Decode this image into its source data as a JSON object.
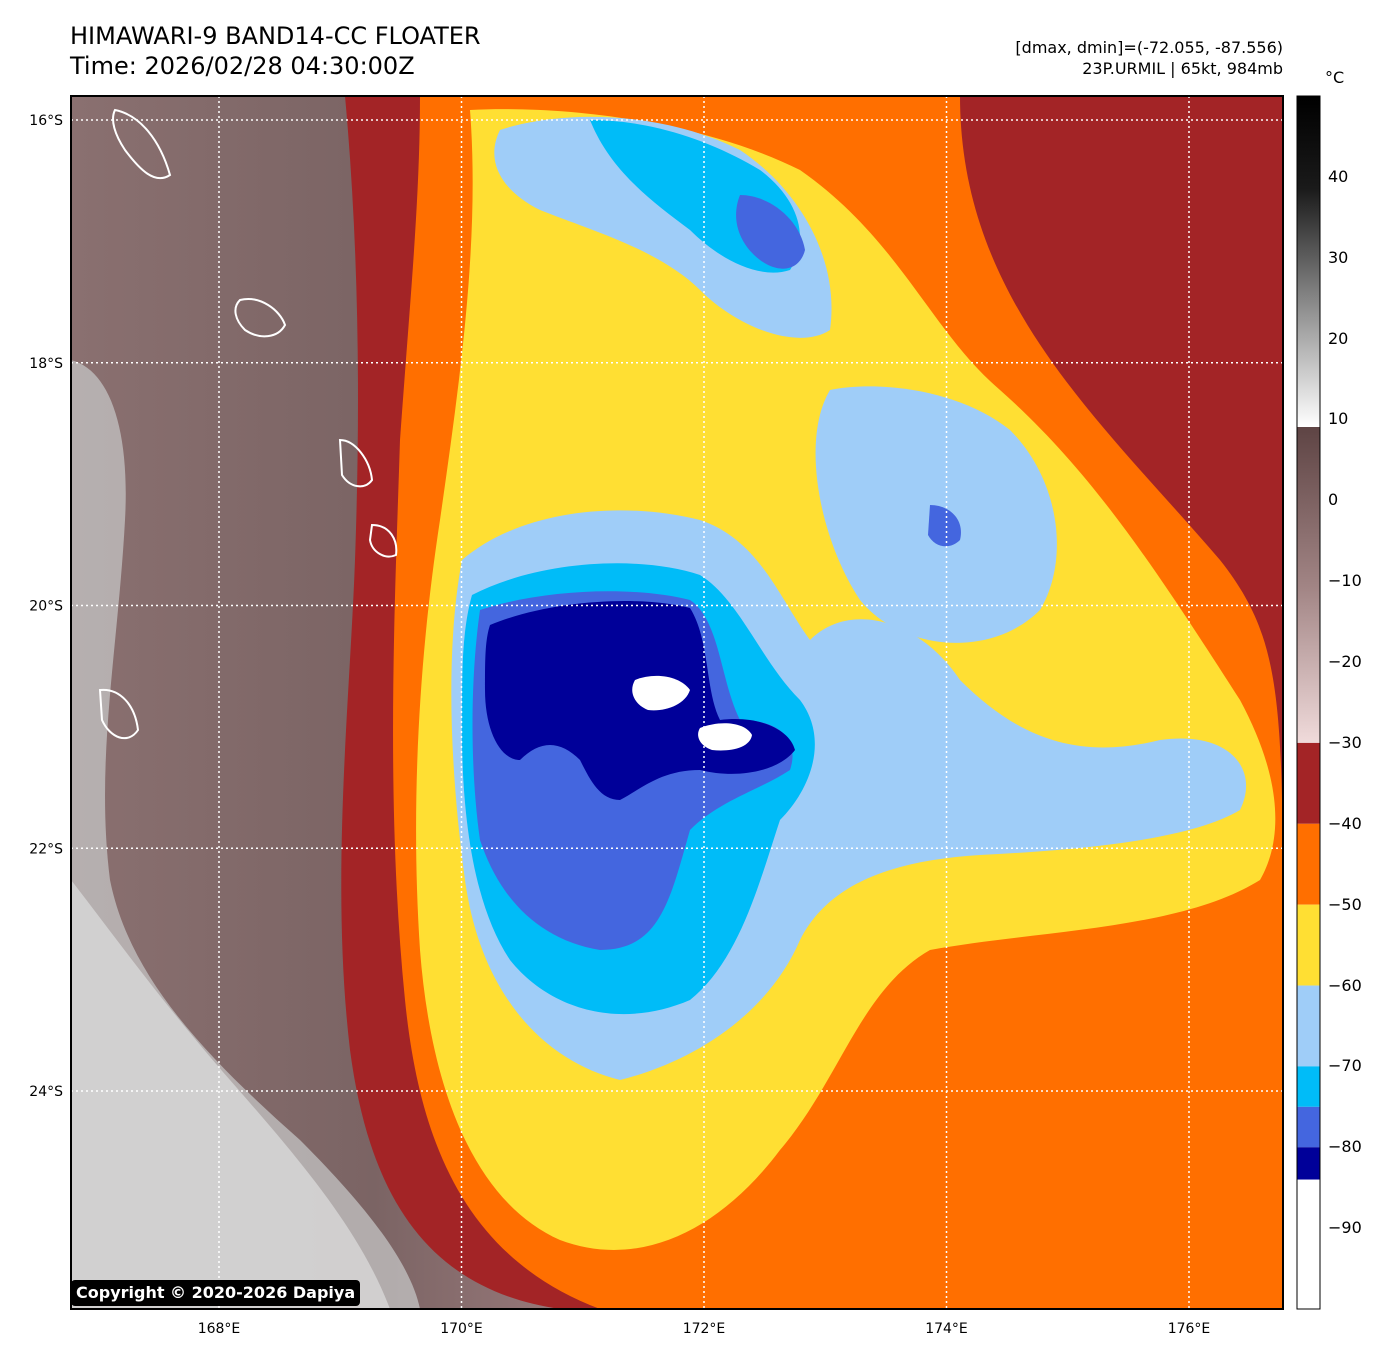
{
  "header": {
    "title_line1": "HIMAWARI-9 BAND14-CC FLOATER",
    "title_line2": "Time: 2026/02/28 04:30:00Z",
    "info_line1": "[dmax, dmin]=(-72.055, -87.556)",
    "info_line2": "23P.URMIL | 65kt, 984mb"
  },
  "map": {
    "lat_labels": [
      "16°S",
      "18°S",
      "20°S",
      "22°S",
      "24°S"
    ],
    "lon_labels": [
      "168°E",
      "170°E",
      "172°E",
      "174°E",
      "176°E"
    ],
    "lat_values": [
      -16,
      -18,
      -20,
      -22,
      -24
    ],
    "lon_values": [
      168,
      170,
      172,
      174,
      176
    ],
    "grid": "dotted white",
    "storm": "23P.URMIL"
  },
  "colorbar": {
    "unit": "°C",
    "range": [
      -100,
      50
    ],
    "tick_labels": [
      "40",
      "30",
      "20",
      "10",
      "0",
      "−10",
      "−20",
      "−30",
      "−40",
      "−50",
      "−60",
      "−70",
      "−80",
      "−90"
    ],
    "tick_values": [
      40,
      30,
      20,
      10,
      0,
      -10,
      -20,
      -30,
      -40,
      -50,
      -60,
      -70,
      -80,
      -90
    ],
    "color_steps": [
      {
        "from": -30,
        "to": -40,
        "color": "#a32426"
      },
      {
        "from": -40,
        "to": -50,
        "color": "#ff6f00"
      },
      {
        "from": -50,
        "to": -60,
        "color": "#ffdf33"
      },
      {
        "from": -60,
        "to": -70,
        "color": "#9fcdf8"
      },
      {
        "from": -70,
        "to": -75,
        "color": "#00bcf8"
      },
      {
        "from": -75,
        "to": -80,
        "color": "#4466df"
      },
      {
        "from": -80,
        "to": -84,
        "color": "#000099"
      },
      {
        "from": -84,
        "to": -100,
        "color": "#ffffff"
      }
    ]
  },
  "copyright": "Copyright © 2020-2026 Dapiya"
}
